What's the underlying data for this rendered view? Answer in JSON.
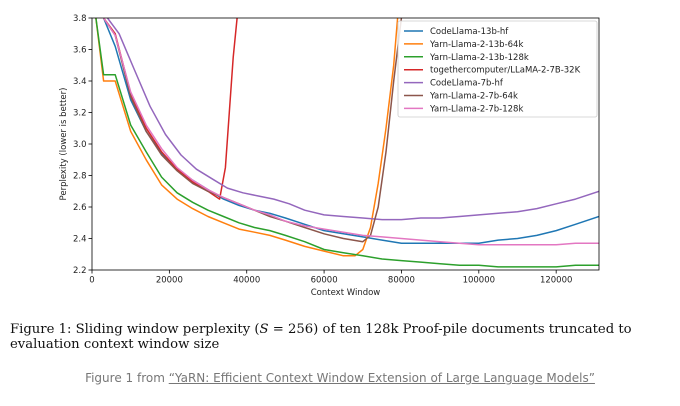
{
  "chart_data": {
    "type": "line",
    "xlabel": "Context Window",
    "ylabel": "Perplexity (lower is better)",
    "xlim": [
      0,
      131072
    ],
    "ylim": [
      2.2,
      3.8
    ],
    "xticks": [
      0,
      20000,
      40000,
      60000,
      80000,
      100000,
      120000
    ],
    "xtick_labels": [
      "0",
      "20000",
      "40000",
      "60000",
      "80000",
      "100000",
      "120000"
    ],
    "yticks": [
      2.2,
      2.4,
      2.6,
      2.8,
      3.0,
      3.2,
      3.4,
      3.6,
      3.8
    ],
    "ytick_labels": [
      "2.2",
      "2.4",
      "2.6",
      "2.8",
      "3.0",
      "3.2",
      "3.4",
      "3.6",
      "3.8"
    ],
    "grid": false,
    "legend_position": "top-right",
    "series": [
      {
        "name": "CodeLlama-13b-hf",
        "color": "#1f77b4",
        "x": [
          3000,
          6000,
          10000,
          14000,
          18000,
          22000,
          26000,
          30000,
          34000,
          38000,
          42000,
          46000,
          50000,
          55000,
          60000,
          65000,
          70000,
          75000,
          80000,
          85000,
          90000,
          95000,
          100000,
          105000,
          110000,
          115000,
          120000,
          125000,
          131072
        ],
        "y": [
          3.8,
          3.62,
          3.28,
          3.08,
          2.94,
          2.84,
          2.77,
          2.71,
          2.65,
          2.61,
          2.58,
          2.56,
          2.53,
          2.49,
          2.45,
          2.43,
          2.41,
          2.39,
          2.37,
          2.37,
          2.37,
          2.37,
          2.37,
          2.39,
          2.4,
          2.42,
          2.45,
          2.49,
          2.54
        ]
      },
      {
        "name": "Yarn-Llama-2-13b-64k",
        "color": "#ff7f0e",
        "x": [
          1000,
          3000,
          6000,
          10000,
          14000,
          18000,
          22000,
          26000,
          30000,
          34000,
          38000,
          42000,
          46000,
          50000,
          55000,
          60000,
          65000,
          68000,
          70000,
          72000,
          74000,
          76000,
          78000,
          79000
        ],
        "y": [
          3.8,
          3.4,
          3.4,
          3.08,
          2.9,
          2.74,
          2.65,
          2.59,
          2.54,
          2.5,
          2.46,
          2.44,
          2.42,
          2.39,
          2.35,
          2.32,
          2.29,
          2.29,
          2.33,
          2.47,
          2.75,
          3.1,
          3.5,
          3.8
        ]
      },
      {
        "name": "Yarn-Llama-2-13b-128k",
        "color": "#2ca02c",
        "x": [
          1000,
          3000,
          6000,
          10000,
          14000,
          18000,
          22000,
          26000,
          30000,
          34000,
          38000,
          42000,
          46000,
          50000,
          55000,
          60000,
          65000,
          70000,
          75000,
          80000,
          85000,
          90000,
          95000,
          100000,
          105000,
          110000,
          115000,
          120000,
          125000,
          131072
        ],
        "y": [
          3.8,
          3.44,
          3.44,
          3.12,
          2.95,
          2.79,
          2.69,
          2.63,
          2.58,
          2.54,
          2.5,
          2.47,
          2.45,
          2.42,
          2.38,
          2.33,
          2.31,
          2.29,
          2.27,
          2.26,
          2.25,
          2.24,
          2.23,
          2.23,
          2.22,
          2.22,
          2.22,
          2.22,
          2.23,
          2.23
        ]
      },
      {
        "name": "togethercomputer/LLaMA-2-7B-32K",
        "color": "#d62728",
        "x": [
          3000,
          6000,
          10000,
          14000,
          18000,
          22000,
          26000,
          30000,
          33000,
          34500,
          35500,
          36500,
          37500
        ],
        "y": [
          3.8,
          3.7,
          3.32,
          3.1,
          2.95,
          2.84,
          2.76,
          2.7,
          2.65,
          2.85,
          3.2,
          3.55,
          3.8
        ]
      },
      {
        "name": "CodeLlama-7b-hf",
        "color": "#9467bd",
        "x": [
          4000,
          7000,
          11000,
          15000,
          19000,
          23000,
          27000,
          31000,
          35000,
          39000,
          43000,
          47000,
          51000,
          55000,
          60000,
          65000,
          70000,
          75000,
          80000,
          85000,
          90000,
          95000,
          100000,
          105000,
          110000,
          115000,
          120000,
          125000,
          131072
        ],
        "y": [
          3.8,
          3.7,
          3.47,
          3.24,
          3.06,
          2.93,
          2.84,
          2.78,
          2.72,
          2.69,
          2.67,
          2.65,
          2.62,
          2.58,
          2.55,
          2.54,
          2.53,
          2.52,
          2.52,
          2.53,
          2.53,
          2.54,
          2.55,
          2.56,
          2.57,
          2.59,
          2.62,
          2.65,
          2.7
        ]
      },
      {
        "name": "Yarn-Llama-2-7b-64k",
        "color": "#8c564b",
        "x": [
          3000,
          6000,
          10000,
          14000,
          18000,
          22000,
          26000,
          30000,
          34000,
          38000,
          42000,
          46000,
          50000,
          55000,
          60000,
          65000,
          70000,
          72000,
          74000,
          76000,
          78000,
          80000
        ],
        "y": [
          3.8,
          3.69,
          3.3,
          3.08,
          2.93,
          2.83,
          2.75,
          2.7,
          2.66,
          2.62,
          2.58,
          2.54,
          2.51,
          2.47,
          2.43,
          2.4,
          2.38,
          2.42,
          2.6,
          2.95,
          3.4,
          3.8
        ]
      },
      {
        "name": "Yarn-Llama-2-7b-128k",
        "color": "#e377c2",
        "x": [
          3000,
          6000,
          10000,
          14000,
          18000,
          22000,
          26000,
          30000,
          34000,
          38000,
          42000,
          46000,
          50000,
          55000,
          60000,
          65000,
          70000,
          75000,
          80000,
          85000,
          90000,
          95000,
          100000,
          105000,
          110000,
          115000,
          120000,
          125000,
          131072
        ],
        "y": [
          3.8,
          3.69,
          3.33,
          3.12,
          2.97,
          2.85,
          2.77,
          2.71,
          2.66,
          2.62,
          2.58,
          2.55,
          2.51,
          2.48,
          2.46,
          2.44,
          2.42,
          2.41,
          2.4,
          2.39,
          2.38,
          2.37,
          2.36,
          2.36,
          2.36,
          2.36,
          2.36,
          2.37,
          2.37
        ]
      }
    ]
  },
  "caption": {
    "figure_label": "Figure 1:",
    "text_before_math": "Sliding window perplexity (",
    "math_var": "S",
    "math_rest": " = 256",
    "text_after_math": ") of ten 128k Proof-pile documents truncated to evaluation context window size"
  },
  "source": {
    "prefix": "Figure 1 from ",
    "link_text": "“YaRN: Efficient Context Window Extension of Large Language Models”"
  }
}
